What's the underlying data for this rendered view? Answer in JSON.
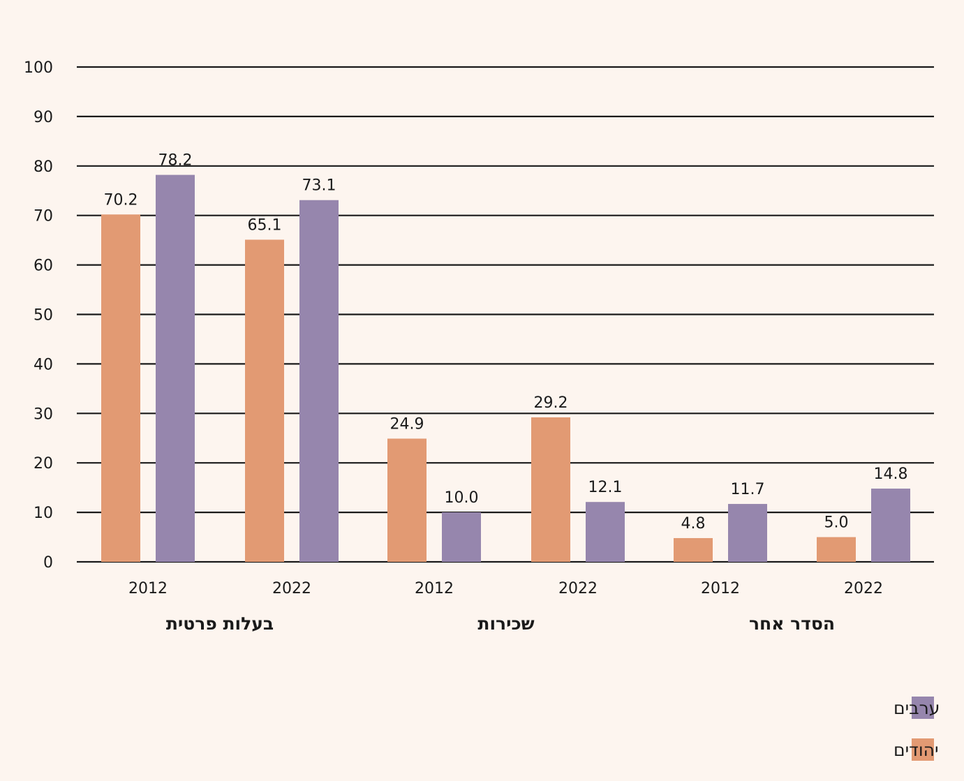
{
  "chart_data": {
    "type": "bar",
    "groups": [
      {
        "label": "בעלות פרטית",
        "years": [
          {
            "year": "2012",
            "values": {
              "jews": 70.2,
              "arabs": 78.2
            }
          },
          {
            "year": "2022",
            "values": {
              "jews": 65.1,
              "arabs": 73.1
            }
          }
        ]
      },
      {
        "label": "שכירות",
        "years": [
          {
            "year": "2012",
            "values": {
              "jews": 24.9,
              "arabs": 10.0
            }
          },
          {
            "year": "2022",
            "values": {
              "jews": 29.2,
              "arabs": 12.1
            }
          }
        ]
      },
      {
        "label": "הסדר אחר",
        "years": [
          {
            "year": "2012",
            "values": {
              "jews": 4.8,
              "arabs": 11.7
            }
          },
          {
            "year": "2022",
            "values": {
              "jews": 5.0,
              "arabs": 14.8
            }
          }
        ]
      }
    ],
    "series": [
      {
        "key": "jews",
        "name": "יהודים",
        "color": "#e29a73"
      },
      {
        "key": "arabs",
        "name": "ערבים",
        "color": "#9686ad"
      }
    ],
    "ylim": [
      0,
      100
    ],
    "yticks": [
      0,
      10,
      20,
      30,
      40,
      50,
      60,
      70,
      80,
      90,
      100
    ],
    "grid": true,
    "legend_position": "bottom-right",
    "title": "",
    "xlabel": "",
    "ylabel": ""
  },
  "colors": {
    "background": "#fdf5ef",
    "gridline": "#1a1a1a",
    "text": "#1a1a1a"
  }
}
